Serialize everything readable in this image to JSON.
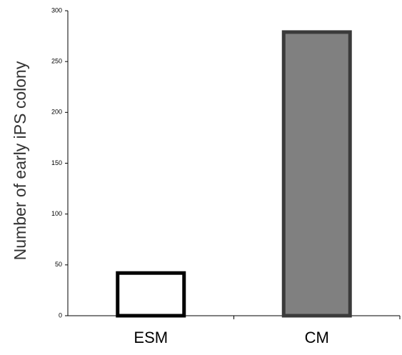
{
  "chart_data": {
    "type": "bar",
    "y_label": "Number of early iPS colony",
    "categories": [
      "ESM",
      "CM"
    ],
    "values": [
      42,
      279
    ],
    "colors": [
      "#ffffff",
      "#808080"
    ],
    "edgecolors": [
      "#000000",
      "#3a3a3a"
    ],
    "ylim": [
      0,
      300
    ],
    "yticks": [
      0,
      50,
      100,
      150,
      200,
      250,
      300
    ],
    "grid": false
  }
}
